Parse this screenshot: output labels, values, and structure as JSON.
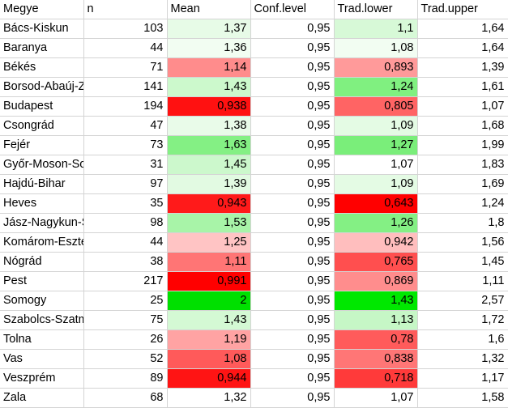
{
  "headers": [
    "Megye",
    "n",
    "Mean",
    "Conf.level",
    "Trad.lower",
    "Trad.upper"
  ],
  "rows": [
    {
      "megye": "Bács-Kiskun",
      "n": "103",
      "mean": "1,37",
      "conf": "0,95",
      "lower": "1,1",
      "upper": "1,64",
      "mean_bg": "#e7fbe7",
      "lower_bg": "#d7f9d7"
    },
    {
      "megye": "Baranya",
      "n": "44",
      "mean": "1,36",
      "conf": "0,95",
      "lower": "1,08",
      "upper": "1,64",
      "mean_bg": "#f2fdf2",
      "lower_bg": "#f2fdf2"
    },
    {
      "megye": "Békés",
      "n": "71",
      "mean": "1,14",
      "conf": "0,95",
      "lower": "0,893",
      "upper": "1,39",
      "mean_bg": "#ff8c8c",
      "lower_bg": "#ff9a9a"
    },
    {
      "megye": "Borsod-Abaúj-Zemplén",
      "n": "141",
      "mean": "1,43",
      "conf": "0,95",
      "lower": "1,24",
      "upper": "1,61",
      "mean_bg": "#ccf9cc",
      "lower_bg": "#80f080"
    },
    {
      "megye": "Budapest",
      "n": "194",
      "mean": "0,938",
      "conf": "0,95",
      "lower": "0,805",
      "upper": "1,07",
      "mean_bg": "#ff1111",
      "lower_bg": "#ff6464"
    },
    {
      "megye": "Csongrád",
      "n": "47",
      "mean": "1,38",
      "conf": "0,95",
      "lower": "1,09",
      "upper": "1,68",
      "mean_bg": "#e9fbe9",
      "lower_bg": "#e4fbe4"
    },
    {
      "megye": "Fejér",
      "n": "73",
      "mean": "1,63",
      "conf": "0,95",
      "lower": "1,27",
      "upper": "1,99",
      "mean_bg": "#84f084",
      "lower_bg": "#7aee7a"
    },
    {
      "megye": "Győr-Moson-Sopron",
      "n": "31",
      "mean": "1,45",
      "conf": "0,95",
      "lower": "1,07",
      "upper": "1,83",
      "mean_bg": "#ccf8cc",
      "lower_bg": "#ffffff"
    },
    {
      "megye": "Hajdú-Bihar",
      "n": "97",
      "mean": "1,39",
      "conf": "0,95",
      "lower": "1,09",
      "upper": "1,69",
      "mean_bg": "#e2fae2",
      "lower_bg": "#e4fbe4"
    },
    {
      "megye": "Heves",
      "n": "35",
      "mean": "0,943",
      "conf": "0,95",
      "lower": "0,643",
      "upper": "1,24",
      "mean_bg": "#ff1a1a",
      "lower_bg": "#ff0000"
    },
    {
      "megye": "Jász-Nagykun-Szolnok",
      "n": "98",
      "mean": "1,53",
      "conf": "0,95",
      "lower": "1,26",
      "upper": "1,8",
      "mean_bg": "#a8f4a8",
      "lower_bg": "#84f084"
    },
    {
      "megye": "Komárom-Esztergom",
      "n": "44",
      "mean": "1,25",
      "conf": "0,95",
      "lower": "0,942",
      "upper": "1,56",
      "mean_bg": "#ffc4c4",
      "lower_bg": "#ffbebe"
    },
    {
      "megye": "Nógrád",
      "n": "38",
      "mean": "1,11",
      "conf": "0,95",
      "lower": "0,765",
      "upper": "1,45",
      "mean_bg": "#ff7575",
      "lower_bg": "#ff4f4f"
    },
    {
      "megye": "Pest",
      "n": "217",
      "mean": "0,991",
      "conf": "0,95",
      "lower": "0,869",
      "upper": "1,11",
      "mean_bg": "#ff0000",
      "lower_bg": "#ff8d8d"
    },
    {
      "megye": "Somogy",
      "n": "25",
      "mean": "2",
      "conf": "0,95",
      "lower": "1,43",
      "upper": "2,57",
      "mean_bg": "#00e000",
      "lower_bg": "#00e800"
    },
    {
      "megye": "Szabolcs-Szatmár-Bereg",
      "n": "75",
      "mean": "1,43",
      "conf": "0,95",
      "lower": "1,13",
      "upper": "1,72",
      "mean_bg": "#d4f9d4",
      "lower_bg": "#c6f7c6"
    },
    {
      "megye": "Tolna",
      "n": "26",
      "mean": "1,19",
      "conf": "0,95",
      "lower": "0,78",
      "upper": "1,6",
      "mean_bg": "#ffa3a3",
      "lower_bg": "#ff5b5b"
    },
    {
      "megye": "Vas",
      "n": "52",
      "mean": "1,08",
      "conf": "0,95",
      "lower": "0,838",
      "upper": "1,32",
      "mean_bg": "#ff5a5a",
      "lower_bg": "#ff7676"
    },
    {
      "megye": "Veszprém",
      "n": "89",
      "mean": "0,944",
      "conf": "0,95",
      "lower": "0,718",
      "upper": "1,17",
      "mean_bg": "#ff1414",
      "lower_bg": "#ff3a3a"
    },
    {
      "megye": "Zala",
      "n": "68",
      "mean": "1,32",
      "conf": "0,95",
      "lower": "1,07",
      "upper": "1,58",
      "mean_bg": "#ffffff",
      "lower_bg": "#ffffff"
    }
  ]
}
